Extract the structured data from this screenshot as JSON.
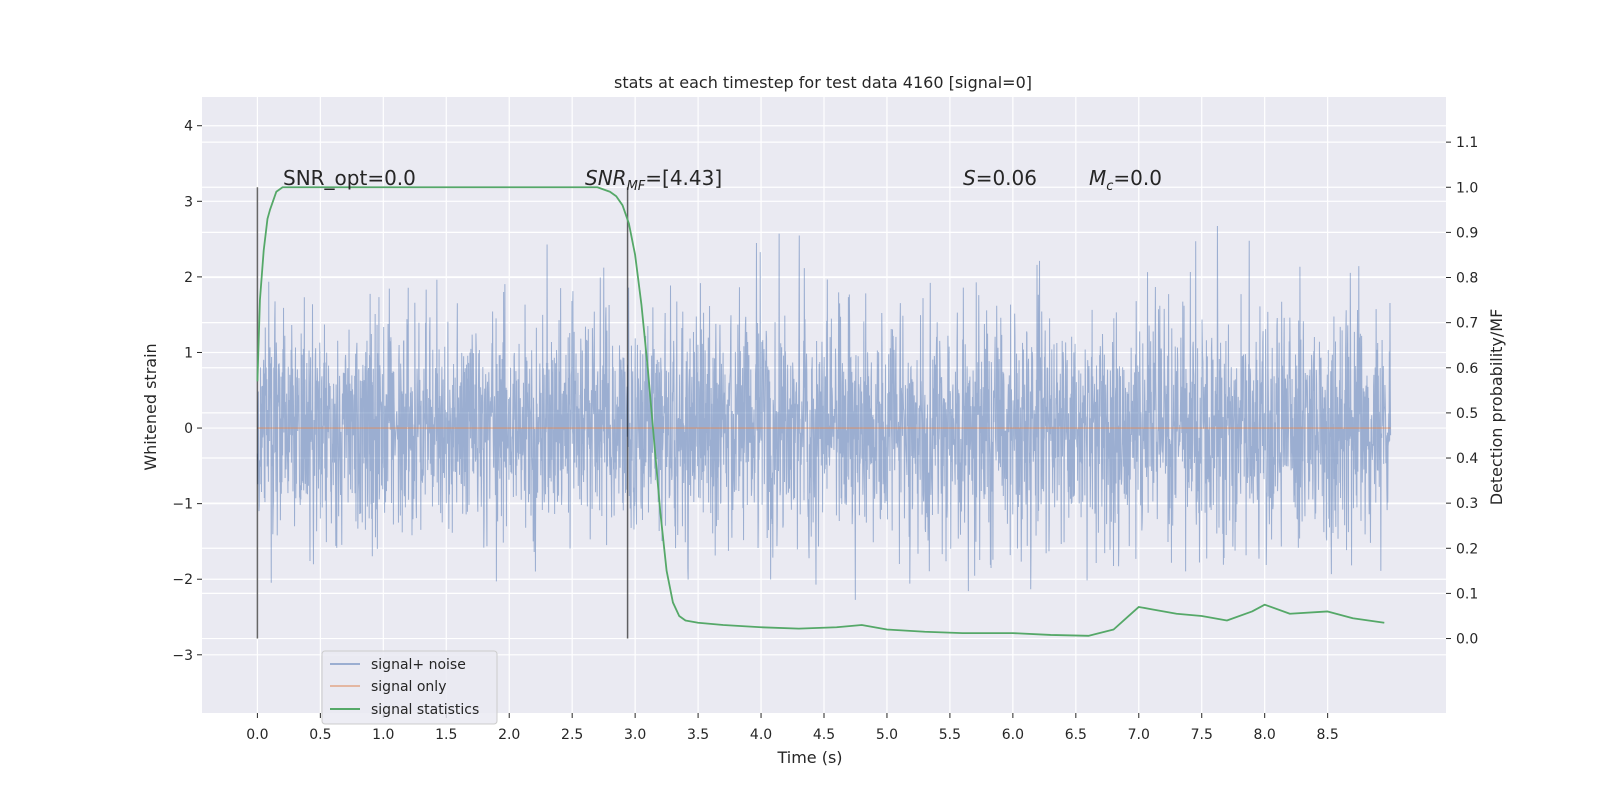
{
  "chart_data": {
    "type": "line",
    "title": "stats at each timestep for test data 4160 [signal=0]",
    "xlabel": "Time (s)",
    "ylabel": "Whitened strain",
    "y2label": "Detection probability/MF",
    "xlim": [
      -0.44,
      9.44
    ],
    "ylim": [
      -3.77,
      4.38
    ],
    "y2lim": [
      -0.165,
      1.2
    ],
    "x_ticks": [
      "0.0",
      "0.5",
      "1.0",
      "1.5",
      "2.0",
      "2.5",
      "3.0",
      "3.5",
      "4.0",
      "4.5",
      "5.0",
      "5.5",
      "6.0",
      "6.5",
      "7.0",
      "7.5",
      "8.0",
      "8.5"
    ],
    "y_ticks": [
      "4",
      "3",
      "2",
      "1",
      "0",
      "−1",
      "−2",
      "−3"
    ],
    "y2_ticks": [
      "1.1",
      "1.0",
      "0.9",
      "0.8",
      "0.7",
      "0.6",
      "0.5",
      "0.4",
      "0.3",
      "0.2",
      "0.1",
      "0.0"
    ],
    "grid": true,
    "legend_position": "lower-left",
    "annotations": {
      "snr_opt": "SNR_opt=0.0",
      "snr_mf_main": "SNR",
      "snr_mf_sub": "MF",
      "snr_mf_value": "=[4.43]",
      "s_main": "S",
      "s_value": "=0.06",
      "mc_main": "M",
      "mc_sub": "c",
      "mc_value": "=0.0"
    },
    "markers_x": [
      0.0,
      2.94
    ],
    "series": [
      {
        "name": "signal+ noise",
        "color": "#4c72b0",
        "noise_sigma": 0.75,
        "x_range": [
          0.0,
          9.0
        ],
        "envelope_typical": [
          -2.0,
          2.0
        ]
      },
      {
        "name": "signal only",
        "color": "#dd8452",
        "x": [
          0.0,
          9.0
        ],
        "y": [
          0.0,
          0.0
        ]
      },
      {
        "name": "signal statistics",
        "color": "#55a868",
        "axis": "right",
        "x": [
          0.0,
          0.02,
          0.05,
          0.08,
          0.1,
          0.15,
          0.2,
          0.3,
          0.5,
          1.0,
          1.5,
          2.0,
          2.5,
          2.6,
          2.7,
          2.8,
          2.85,
          2.9,
          2.95,
          3.0,
          3.05,
          3.1,
          3.15,
          3.2,
          3.25,
          3.3,
          3.35,
          3.4,
          3.5,
          3.7,
          4.0,
          4.3,
          4.6,
          4.8,
          5.0,
          5.3,
          5.6,
          6.0,
          6.3,
          6.6,
          6.8,
          6.9,
          7.0,
          7.1,
          7.3,
          7.5,
          7.7,
          7.9,
          8.0,
          8.2,
          8.5,
          8.7,
          8.95
        ],
        "y": [
          0.57,
          0.75,
          0.86,
          0.93,
          0.95,
          0.99,
          1.0,
          1.0,
          1.0,
          1.0,
          1.0,
          1.0,
          1.0,
          1.0,
          1.0,
          0.99,
          0.98,
          0.96,
          0.92,
          0.85,
          0.74,
          0.6,
          0.44,
          0.28,
          0.15,
          0.08,
          0.05,
          0.04,
          0.035,
          0.03,
          0.025,
          0.022,
          0.025,
          0.03,
          0.02,
          0.015,
          0.012,
          0.012,
          0.008,
          0.006,
          0.02,
          0.045,
          0.07,
          0.065,
          0.055,
          0.05,
          0.04,
          0.06,
          0.075,
          0.055,
          0.06,
          0.045,
          0.035
        ]
      }
    ]
  }
}
